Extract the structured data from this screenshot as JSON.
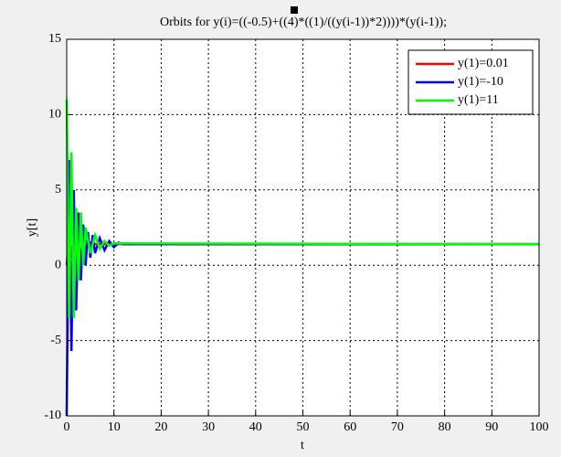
{
  "chart_data": {
    "type": "line",
    "title": "Orbits for y(i)=((-0.5)+((4)*((1)/((y(i-1))*2))))*(y(i-1));",
    "x_label": "t",
    "y_label": "y[t]",
    "xlim": [
      0,
      100
    ],
    "xticks": [
      0,
      10,
      20,
      30,
      40,
      50,
      60,
      70,
      80,
      90,
      100
    ],
    "ylim": [
      -10,
      15
    ],
    "yticks": [
      -10,
      -5,
      0,
      5,
      10,
      15
    ],
    "grid": true,
    "legend": "upper-right",
    "series": [
      {
        "name": "y(1)=0.01",
        "color": "#ff0000",
        "x": [
          0,
          0.5,
          1,
          1.5,
          2,
          3,
          4,
          5,
          6,
          100
        ],
        "values": [
          0.01,
          2,
          0.5,
          2,
          0.8,
          1.8,
          1.2,
          1.5,
          1.4,
          1.4
        ]
      },
      {
        "name": "y(1)=-10",
        "color": "#0000ff",
        "x": [
          0,
          0.5,
          1,
          1.5,
          2,
          2.5,
          3,
          3.5,
          4,
          4.5,
          5,
          5.5,
          6,
          7,
          8,
          9,
          10,
          11,
          12,
          100
        ],
        "values": [
          -10,
          7,
          -5.7,
          5,
          -3,
          3.5,
          -1,
          2.7,
          0,
          2.2,
          0.5,
          2,
          0.8,
          1.8,
          1,
          1.6,
          1.2,
          1.5,
          1.4,
          1.4
        ]
      },
      {
        "name": "y(1)=11",
        "color": "#00ff00",
        "x": [
          0,
          0.5,
          1,
          1.5,
          2,
          2.5,
          3,
          3.5,
          4,
          5,
          6,
          7,
          8,
          9,
          10,
          100
        ],
        "values": [
          11,
          -3.5,
          7.5,
          -3.5,
          3.8,
          -1,
          3.5,
          0,
          2.5,
          0.8,
          2,
          1.1,
          1.6,
          1.3,
          1.45,
          1.4
        ]
      }
    ]
  }
}
